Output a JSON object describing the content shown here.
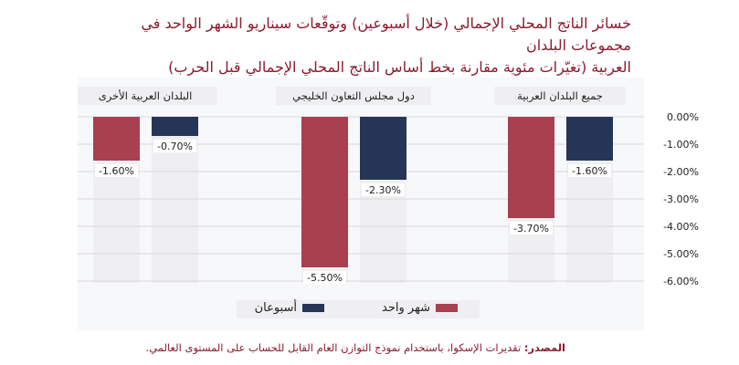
{
  "title": {
    "line1": "خسائر الناتج المحلي الإجمالي (خلال أسبوعين) وتوقّعات سيناريو الشهر الواحد في مجموعات البلدان",
    "line2": "العربية (تغيّرات مئوية مقارنة بخط أساس الناتج المحلي الإجمالي قبل الحرب)"
  },
  "chart_data": {
    "type": "bar",
    "categories": [
      "البلدان العربية الأخرى",
      "دول مجلس التعاون الخليجي",
      "جميع البلدان العربية"
    ],
    "series": [
      {
        "name": "شهر واحد",
        "color": "#a8404f",
        "values": [
          -1.6,
          -5.5,
          -3.7
        ],
        "labels": [
          "-1.60%",
          "-5.50%",
          "-3.70%"
        ]
      },
      {
        "name": "أسبوعان",
        "color": "#253558",
        "values": [
          -0.7,
          -2.3,
          -1.6
        ],
        "labels": [
          "-0.70%",
          "-2.30%",
          "-1.60%"
        ]
      }
    ],
    "yticks": [
      "0.00%",
      "-1.00%",
      "-2.00%",
      "-3.00%",
      "-4.00%",
      "-5.00%",
      "-6.00%"
    ],
    "ylim": [
      -6,
      0
    ],
    "legend": "bottom"
  },
  "source": {
    "label": "المصدر:",
    "text": " تقديرات الإسكوا، باستخدام نموذج التوازن العام القابل للحساب على المستوى العالمي."
  }
}
